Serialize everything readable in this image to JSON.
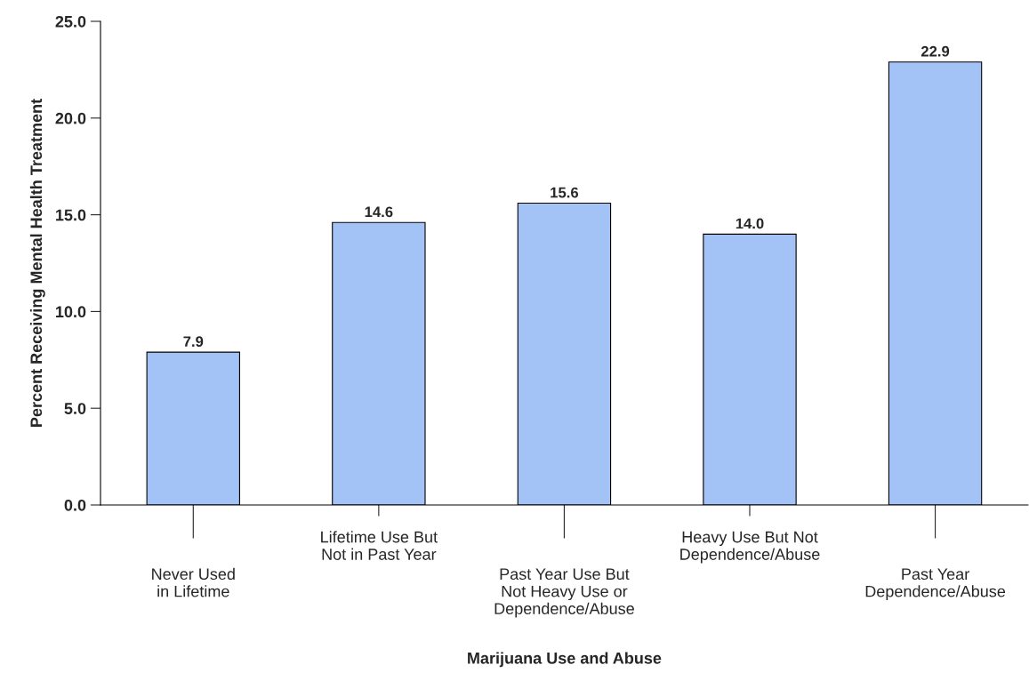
{
  "chart_data": {
    "type": "bar",
    "xlabel": "Marijuana Use and Abuse",
    "ylabel": "Percent Receiving Mental Health Treatment",
    "categories": [
      "Never Used\nin Lifetime",
      "Lifetime Use But\nNot in Past Year",
      "Past Year Use But\nNot Heavy Use or\nDependence/Abuse",
      "Heavy Use But Not\nDependence/Abuse",
      "Past Year\nDependence/Abuse"
    ],
    "values": [
      7.9,
      14.6,
      15.6,
      14.0,
      22.9
    ],
    "color": "#a3c3f7",
    "ylim": [
      0,
      25
    ],
    "yticks": [
      {
        "value": 0,
        "label": "0.0"
      },
      {
        "value": 5,
        "label": "5.0"
      },
      {
        "value": 10,
        "label": "10.0"
      },
      {
        "value": 15,
        "label": "15.0"
      },
      {
        "value": 20,
        "label": "20.0"
      },
      {
        "value": 25,
        "label": "25.0"
      }
    ],
    "value_labels": [
      "7.9",
      "14.6",
      "15.6",
      "14.0",
      "22.9"
    ],
    "grid": false
  }
}
